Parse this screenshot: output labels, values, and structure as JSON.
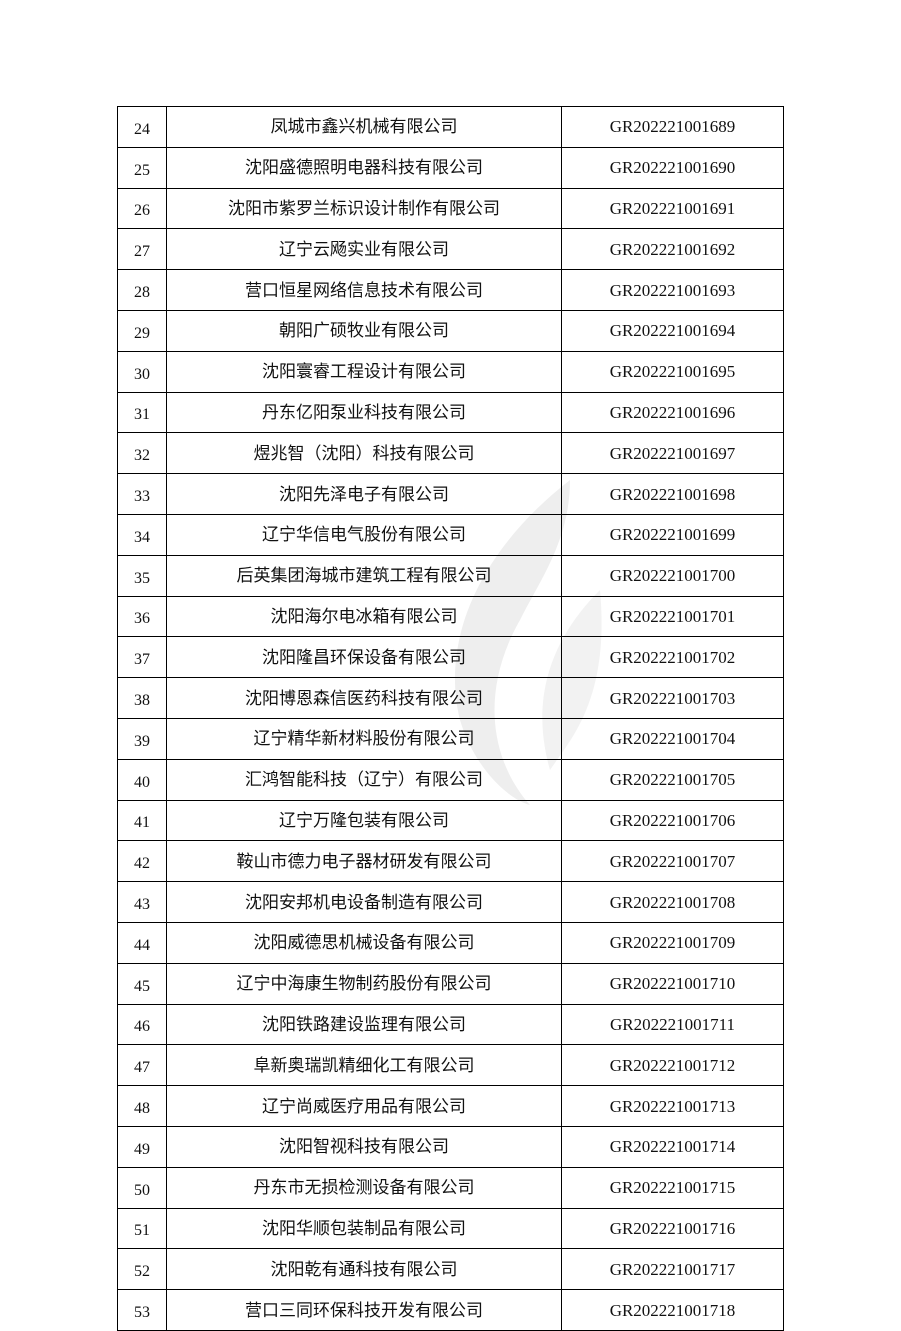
{
  "table": {
    "rows": [
      [
        "24",
        "凤城市鑫兴机械有限公司",
        "GR202221001689"
      ],
      [
        "25",
        "沈阳盛德照明电器科技有限公司",
        "GR202221001690"
      ],
      [
        "26",
        "沈阳市紫罗兰标识设计制作有限公司",
        "GR202221001691"
      ],
      [
        "27",
        "辽宁云飏实业有限公司",
        "GR202221001692"
      ],
      [
        "28",
        "营口恒星网络信息技术有限公司",
        "GR202221001693"
      ],
      [
        "29",
        "朝阳广硕牧业有限公司",
        "GR202221001694"
      ],
      [
        "30",
        "沈阳寰睿工程设计有限公司",
        "GR202221001695"
      ],
      [
        "31",
        "丹东亿阳泵业科技有限公司",
        "GR202221001696"
      ],
      [
        "32",
        "煜兆智（沈阳）科技有限公司",
        "GR202221001697"
      ],
      [
        "33",
        "沈阳先泽电子有限公司",
        "GR202221001698"
      ],
      [
        "34",
        "辽宁华信电气股份有限公司",
        "GR202221001699"
      ],
      [
        "35",
        "后英集团海城市建筑工程有限公司",
        "GR202221001700"
      ],
      [
        "36",
        "沈阳海尔电冰箱有限公司",
        "GR202221001701"
      ],
      [
        "37",
        "沈阳隆昌环保设备有限公司",
        "GR202221001702"
      ],
      [
        "38",
        "沈阳博恩森信医药科技有限公司",
        "GR202221001703"
      ],
      [
        "39",
        "辽宁精华新材料股份有限公司",
        "GR202221001704"
      ],
      [
        "40",
        "汇鸿智能科技（辽宁）有限公司",
        "GR202221001705"
      ],
      [
        "41",
        "辽宁万隆包装有限公司",
        "GR202221001706"
      ],
      [
        "42",
        "鞍山市德力电子器材研发有限公司",
        "GR202221001707"
      ],
      [
        "43",
        "沈阳安邦机电设备制造有限公司",
        "GR202221001708"
      ],
      [
        "44",
        "沈阳威德思机械设备有限公司",
        "GR202221001709"
      ],
      [
        "45",
        "辽宁中海康生物制药股份有限公司",
        "GR202221001710"
      ],
      [
        "46",
        "沈阳铁路建设监理有限公司",
        "GR202221001711"
      ],
      [
        "47",
        "阜新奥瑞凯精细化工有限公司",
        "GR202221001712"
      ],
      [
        "48",
        "辽宁尚威医疗用品有限公司",
        "GR202221001713"
      ],
      [
        "49",
        "沈阳智视科技有限公司",
        "GR202221001714"
      ],
      [
        "50",
        "丹东市无损检测设备有限公司",
        "GR202221001715"
      ],
      [
        "51",
        "沈阳华顺包装制品有限公司",
        "GR202221001716"
      ],
      [
        "52",
        "沈阳乾有通科技有限公司",
        "GR202221001717"
      ],
      [
        "53",
        "营口三同环保科技开发有限公司",
        "GR202221001718"
      ]
    ]
  }
}
